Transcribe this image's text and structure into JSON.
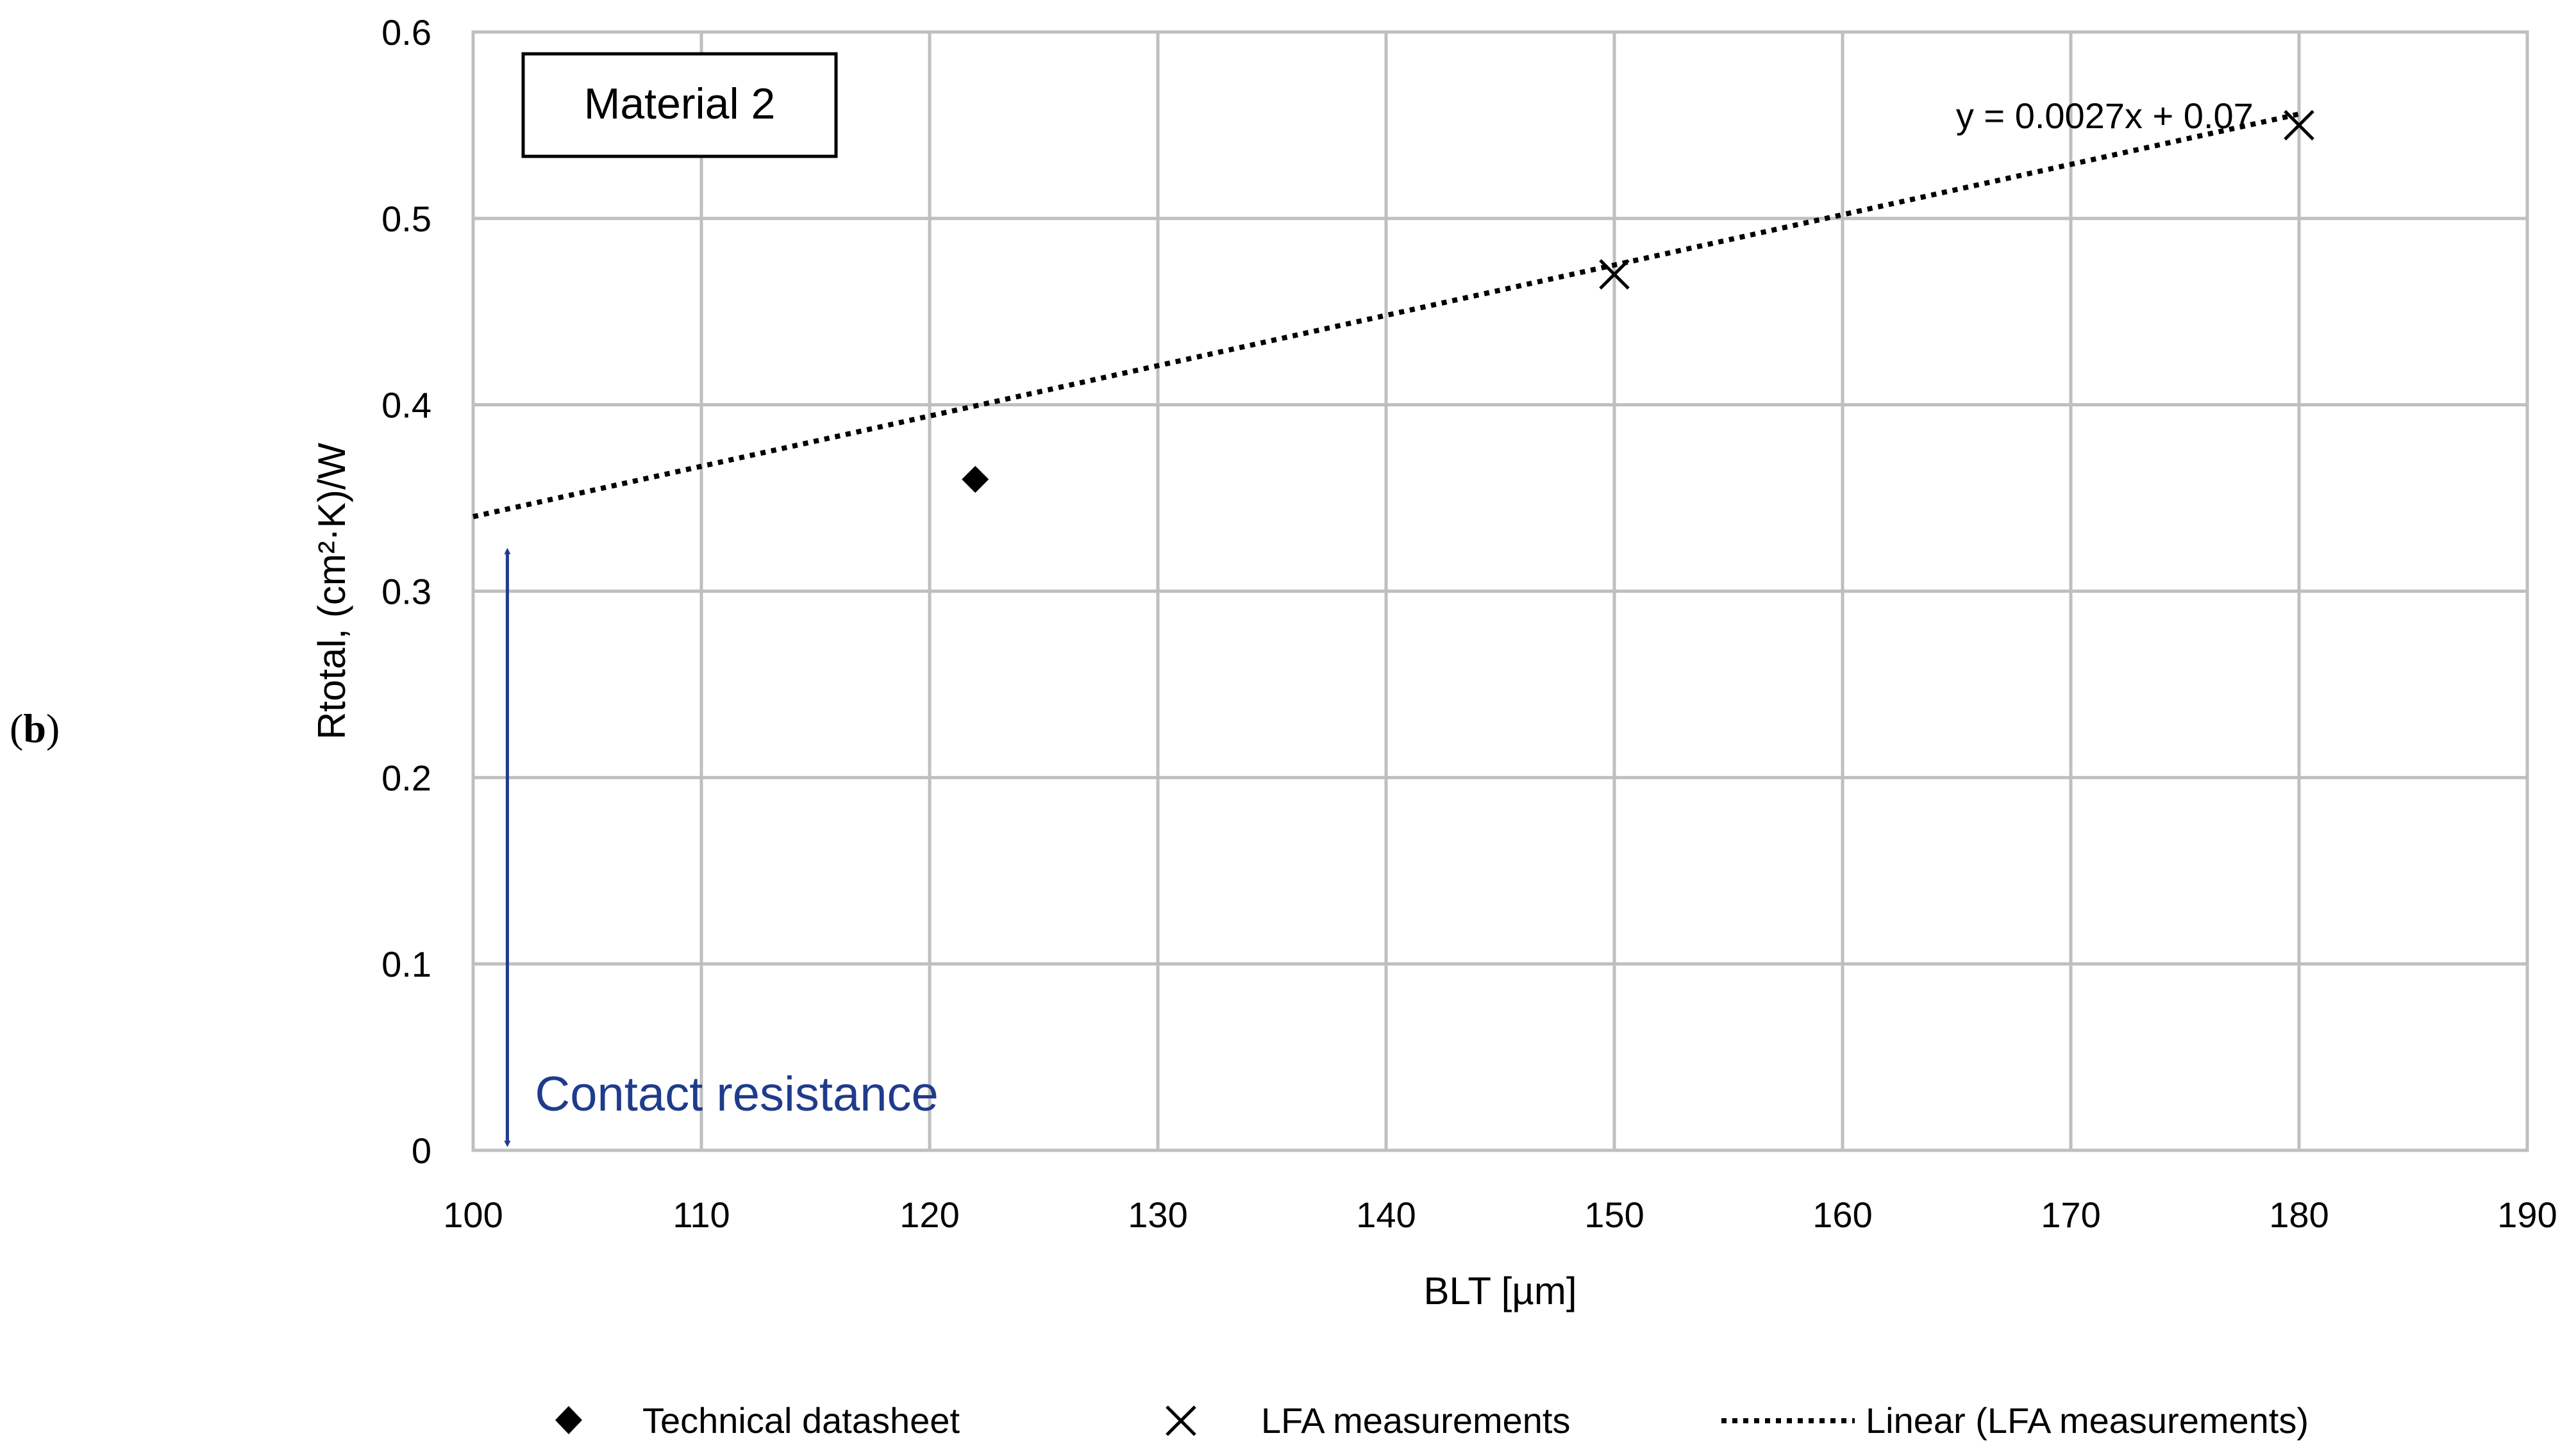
{
  "panel_label": {
    "open": "(",
    "bold": "b",
    "close": ")"
  },
  "colors": {
    "grid": "#bfbfbf",
    "annotation": "#1f3b8c",
    "trend": "#000000"
  },
  "chart_data": {
    "type": "scatter",
    "title": "",
    "xlabel": "BLT [µm]",
    "ylabel": "Rtotal, (cm²·K)/W",
    "xlim": [
      100,
      190
    ],
    "ylim": [
      0,
      0.6
    ],
    "xticks": [
      100,
      110,
      120,
      130,
      140,
      150,
      160,
      170,
      180,
      190
    ],
    "yticks": [
      0,
      0.1,
      0.2,
      0.3,
      0.4,
      0.5,
      0.6
    ],
    "grid": true,
    "series": [
      {
        "name": "Technical datasheet",
        "marker": "diamond",
        "points": [
          {
            "x": 122,
            "y": 0.36
          }
        ]
      },
      {
        "name": "LFA measurements",
        "marker": "x",
        "points": [
          {
            "x": 150,
            "y": 0.47
          },
          {
            "x": 180,
            "y": 0.55
          }
        ]
      }
    ],
    "trendline": {
      "name": "Linear (LFA measurements)",
      "slope": 0.0027,
      "intercept": 0.07,
      "equation": "y = 0.0027x + 0.07",
      "x_range": [
        100,
        180
      ]
    },
    "annotations": {
      "material_box": "Material 2",
      "contact_label": "Contact resistance",
      "contact_arrow_x": 101.5,
      "contact_arrow_y": [
        0,
        0.325
      ]
    },
    "legend": {
      "position": "bottom",
      "entries": [
        "Technical datasheet",
        "LFA measurements",
        "Linear (LFA measurements)"
      ]
    }
  }
}
